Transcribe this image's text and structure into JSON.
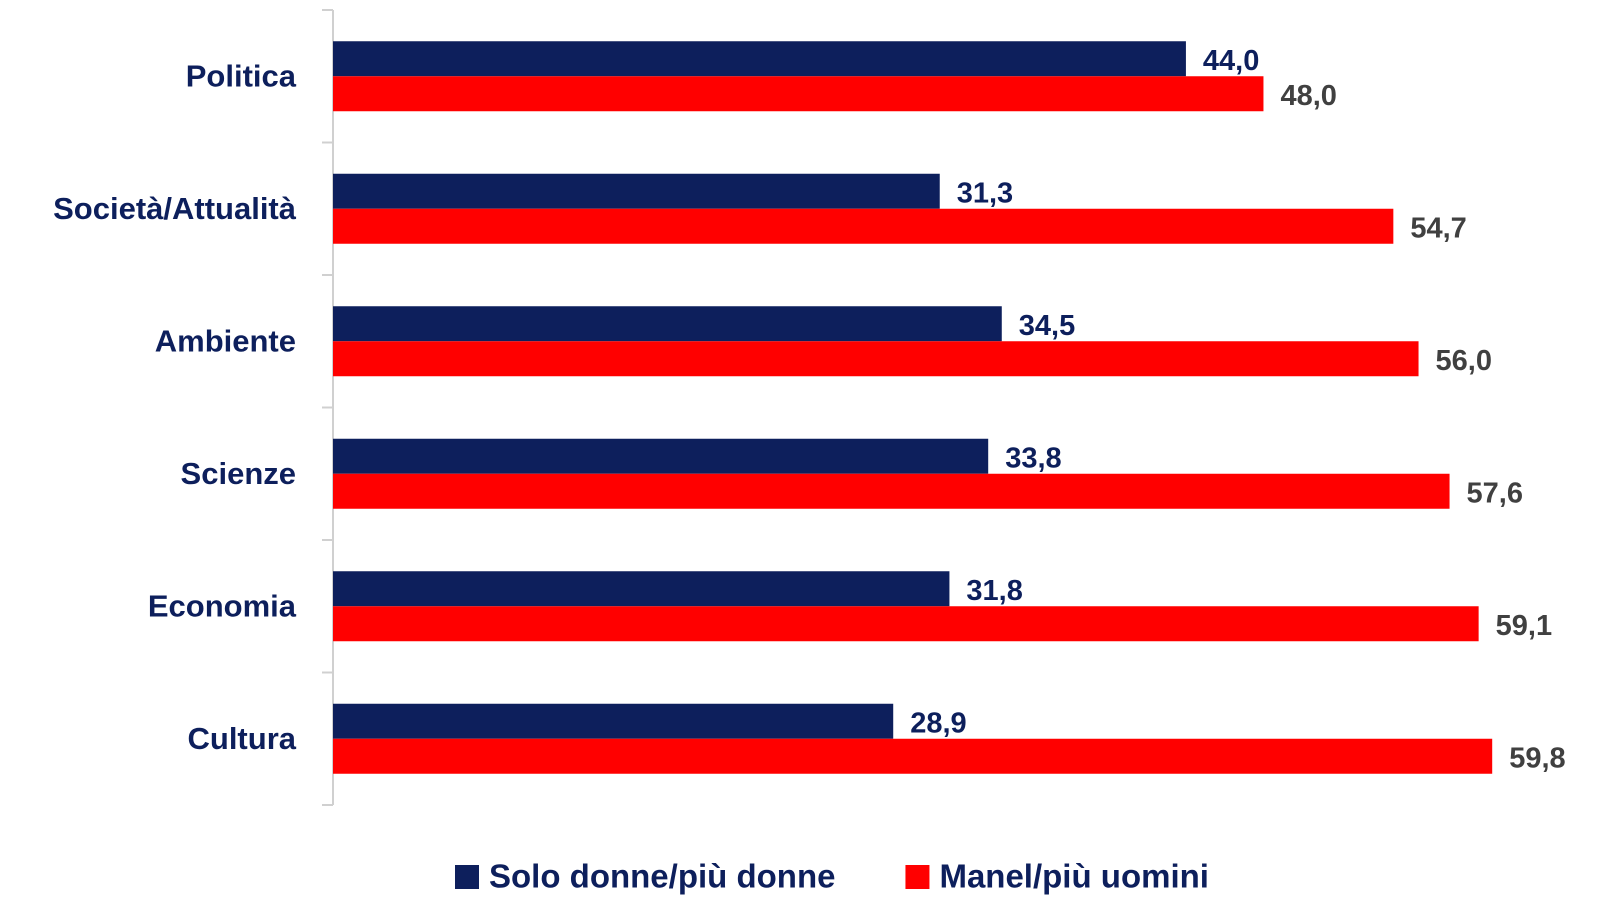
{
  "chart_data": {
    "type": "bar",
    "orientation": "horizontal",
    "categories": [
      "Politica",
      "Società/Attualità",
      "Ambiente",
      "Scienze",
      "Economia",
      "Cultura"
    ],
    "series": [
      {
        "name": "Solo donne/più donne",
        "color": "#0d1f5c",
        "values": [
          44.0,
          31.3,
          34.5,
          33.8,
          31.8,
          28.9
        ],
        "value_labels": [
          "44,0",
          "31,3",
          "34,5",
          "33,8",
          "31,8",
          "28,9"
        ]
      },
      {
        "name": "Manel/più uomini",
        "color": "#ff0000",
        "values": [
          48.0,
          54.7,
          56.0,
          57.6,
          59.1,
          59.8
        ],
        "value_labels": [
          "48,0",
          "54,7",
          "56,0",
          "57,6",
          "59,1",
          "59,8"
        ]
      }
    ],
    "xlim": [
      0,
      65
    ],
    "legend": "bottom"
  }
}
